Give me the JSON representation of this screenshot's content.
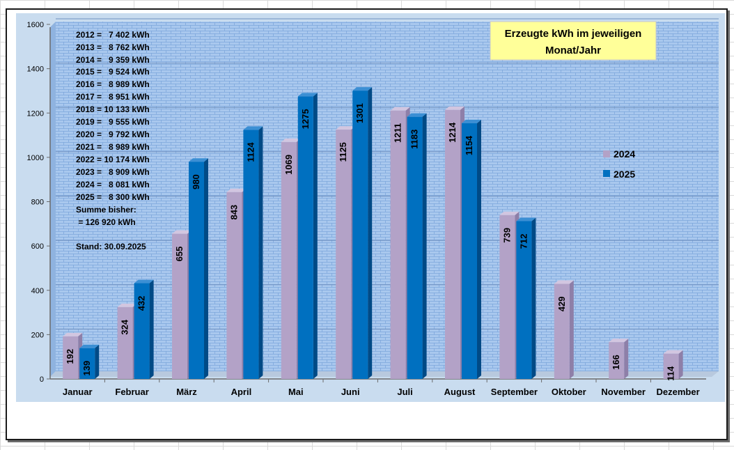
{
  "chart_data": {
    "type": "bar",
    "title_lines": [
      "Erzeugte kWh im jeweiligen",
      "Monat/Jahr"
    ],
    "categories": [
      "Januar",
      "Februar",
      "März",
      "April",
      "Mai",
      "Juni",
      "Juli",
      "August",
      "September",
      "Oktober",
      "November",
      "Dezember"
    ],
    "series": [
      {
        "name": "2024",
        "values": [
          192,
          324,
          655,
          843,
          1069,
          1125,
          1211,
          1214,
          739,
          429,
          166,
          114
        ]
      },
      {
        "name": "2025",
        "values": [
          139,
          432,
          980,
          1124,
          1275,
          1301,
          1183,
          1154,
          712,
          null,
          null,
          null
        ]
      }
    ],
    "value_labels": {
      "2024": [
        "192",
        "324",
        "655",
        "843",
        "1069",
        "1125",
        "1211",
        "1214",
        "739",
        "429",
        "166",
        "114"
      ],
      "2025": [
        "139",
        "432",
        "980",
        "1124",
        "1275",
        "1301",
        "1183",
        "1154",
        "712",
        "",
        "",
        ""
      ]
    },
    "ylim": [
      0,
      1600
    ],
    "yticks": [
      "0",
      "200",
      "400",
      "600",
      "800",
      "1000",
      "1200",
      "1400",
      "1600"
    ],
    "grid": true,
    "legend_position": "right",
    "colors": {
      "2024": "#b3a2c7",
      "2025": "#0070c0"
    },
    "annotation_lines": [
      "2012 =   7 402 kWh",
      "2013 =   8 762 kWh",
      "2014 =   9 359 kWh",
      "2015 =   9 524 kWh",
      "2016 =   8 989 kWh",
      "2017 =   8 951 kWh",
      "2018 = 10 133 kWh",
      "2019 =   9 555 kWh",
      "2020 =   9 792 kWh",
      "2021 =   8 989 kWh",
      "2022 = 10 174 kWh",
      "2023 =   8 909 kWh",
      "2024 =   8 081 kWh",
      "2025 =   8 300 kWh",
      "Summe bisher:",
      " = 126 920 kWh"
    ],
    "stand": "Stand: 30.09.2025"
  }
}
